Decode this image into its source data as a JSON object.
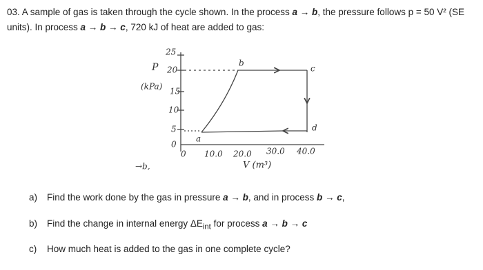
{
  "problem": {
    "intro": [
      "03. A sample of gas is taken through the cycle shown. In the process ",
      "a → b",
      ", the pressure follows p = 50 V² (SE units). In process ",
      "a → b → c",
      ", 720 kJ of heat are added to gas:"
    ]
  },
  "figure": {
    "y_label": "P",
    "y_unit": "(kPa)",
    "y_ticks": [
      "25",
      "20",
      "15",
      "10",
      "5",
      "0"
    ],
    "x_ticks": [
      "0",
      "10.0",
      "20.0",
      "30.0",
      "40.0"
    ],
    "x_label": "V (m³)",
    "points": [
      "a",
      "b",
      "c",
      "d"
    ],
    "note": "→b,"
  },
  "questions": [
    {
      "marker": "a)",
      "text": [
        "Find the work done by the gas in pressure ",
        "a → b",
        ", and in process ",
        "b → c",
        ","
      ]
    },
    {
      "marker": "b)",
      "text": [
        "Find the change in internal energy ΔE",
        "int",
        " for process ",
        "a → b → c"
      ]
    },
    {
      "marker": "c)",
      "text": [
        "How much heat is added to the gas in one complete cycle?"
      ]
    }
  ]
}
